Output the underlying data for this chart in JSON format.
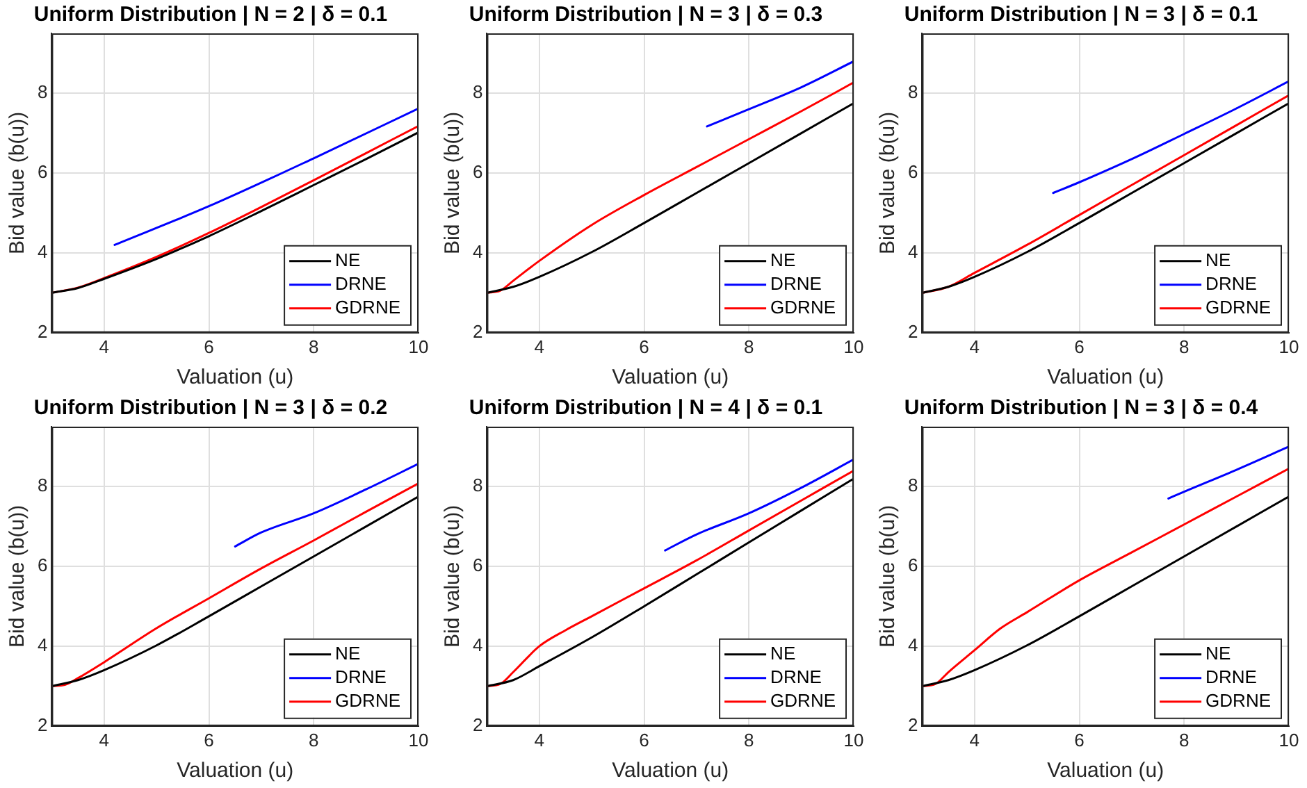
{
  "chart_data": [
    {
      "type": "line",
      "title": "Uniform Distribution | N = 2 | δ = 0.1",
      "xlabel": "Valuation (u)",
      "ylabel": "Bid value (b(u))",
      "xlim": [
        3,
        10
      ],
      "ylim": [
        2,
        9.5
      ],
      "xticks": [
        4,
        6,
        8,
        10
      ],
      "yticks": [
        2,
        4,
        6,
        8
      ],
      "grid": true,
      "legend": "bottom right",
      "marker": "none",
      "line_style": "solid",
      "series": [
        {
          "name": "NE",
          "color": "#000000",
          "x": [
            3,
            3.5,
            4,
            5,
            6,
            7,
            8,
            9,
            10
          ],
          "values": [
            3,
            3.12,
            3.35,
            3.85,
            4.42,
            5.05,
            5.7,
            6.35,
            7.02
          ]
        },
        {
          "name": "DRNE",
          "color": "#0000ff",
          "x": [
            4.2,
            6,
            8,
            10
          ],
          "values": [
            4.2,
            5.17,
            6.37,
            7.62
          ]
        },
        {
          "name": "GDRNE",
          "color": "#ff0000",
          "x": [
            3,
            3.5,
            4,
            5,
            6,
            7,
            8,
            9,
            10
          ],
          "values": [
            3,
            3.13,
            3.37,
            3.9,
            4.5,
            5.15,
            5.82,
            6.5,
            7.18
          ]
        }
      ]
    },
    {
      "type": "line",
      "title": "Uniform Distribution | N = 3 | δ = 0.3",
      "xlabel": "Valuation (u)",
      "ylabel": "Bid value (b(u))",
      "xlim": [
        3,
        10
      ],
      "ylim": [
        2,
        9.5
      ],
      "xticks": [
        4,
        6,
        8,
        10
      ],
      "yticks": [
        2,
        4,
        6,
        8
      ],
      "grid": true,
      "legend": "bottom right",
      "marker": "none",
      "line_style": "solid",
      "series": [
        {
          "name": "NE",
          "color": "#000000",
          "x": [
            3,
            3.5,
            4,
            5,
            6,
            7,
            8,
            9,
            10
          ],
          "values": [
            3,
            3.15,
            3.4,
            4.02,
            4.75,
            5.5,
            6.25,
            7.0,
            7.75
          ]
        },
        {
          "name": "DRNE",
          "color": "#0000ff",
          "x": [
            7.2,
            8,
            9,
            10
          ],
          "values": [
            7.17,
            7.6,
            8.15,
            8.8
          ]
        },
        {
          "name": "GDRNE",
          "color": "#ff0000",
          "x": [
            3,
            3.25,
            3.5,
            4,
            5,
            6,
            7,
            8,
            9,
            10
          ],
          "values": [
            3,
            3.05,
            3.3,
            3.8,
            4.7,
            5.45,
            6.15,
            6.85,
            7.55,
            8.27
          ]
        }
      ]
    },
    {
      "type": "line",
      "title": "Uniform Distribution | N = 3 | δ = 0.1",
      "xlabel": "Valuation (u)",
      "ylabel": "Bid value (b(u))",
      "xlim": [
        3,
        10
      ],
      "ylim": [
        2,
        9.5
      ],
      "xticks": [
        4,
        6,
        8,
        10
      ],
      "yticks": [
        2,
        4,
        6,
        8
      ],
      "grid": true,
      "legend": "bottom right",
      "marker": "none",
      "line_style": "solid",
      "series": [
        {
          "name": "NE",
          "color": "#000000",
          "x": [
            3,
            3.5,
            4,
            5,
            6,
            7,
            8,
            9,
            10
          ],
          "values": [
            3,
            3.15,
            3.4,
            4.02,
            4.75,
            5.5,
            6.25,
            7.0,
            7.75
          ]
        },
        {
          "name": "DRNE",
          "color": "#0000ff",
          "x": [
            5.5,
            6,
            7,
            8,
            9,
            10
          ],
          "values": [
            5.5,
            5.77,
            6.35,
            6.98,
            7.62,
            8.3
          ]
        },
        {
          "name": "GDRNE",
          "color": "#ff0000",
          "x": [
            3,
            3.5,
            4,
            5,
            6,
            7,
            8,
            9,
            10
          ],
          "values": [
            3,
            3.15,
            3.5,
            4.2,
            4.95,
            5.7,
            6.45,
            7.2,
            7.95
          ]
        }
      ]
    },
    {
      "type": "line",
      "title": "Uniform Distribution | N = 3 | δ = 0.2",
      "xlabel": "Valuation (u)",
      "ylabel": "Bid value (b(u))",
      "xlim": [
        3,
        10
      ],
      "ylim": [
        2,
        9.5
      ],
      "xticks": [
        4,
        6,
        8,
        10
      ],
      "yticks": [
        2,
        4,
        6,
        8
      ],
      "grid": true,
      "legend": "bottom right",
      "marker": "none",
      "line_style": "solid",
      "series": [
        {
          "name": "NE",
          "color": "#000000",
          "x": [
            3,
            3.5,
            4,
            5,
            6,
            7,
            8,
            9,
            10
          ],
          "values": [
            3,
            3.15,
            3.4,
            4.02,
            4.75,
            5.5,
            6.25,
            7.0,
            7.75
          ]
        },
        {
          "name": "DRNE",
          "color": "#0000ff",
          "x": [
            6.5,
            7,
            8,
            9,
            10
          ],
          "values": [
            6.5,
            6.85,
            7.33,
            7.93,
            8.57
          ]
        },
        {
          "name": "GDRNE",
          "color": "#ff0000",
          "x": [
            3,
            3.25,
            3.5,
            4,
            5,
            6,
            7,
            8,
            9,
            10
          ],
          "values": [
            3,
            3.03,
            3.2,
            3.6,
            4.45,
            5.2,
            5.95,
            6.65,
            7.37,
            8.08
          ]
        }
      ]
    },
    {
      "type": "line",
      "title": "Uniform Distribution | N = 4 | δ = 0.1",
      "xlabel": "Valuation (u)",
      "ylabel": "Bid value (b(u))",
      "xlim": [
        3,
        10
      ],
      "ylim": [
        2,
        9.5
      ],
      "xticks": [
        4,
        6,
        8,
        10
      ],
      "yticks": [
        2,
        4,
        6,
        8
      ],
      "grid": true,
      "legend": "bottom right",
      "marker": "none",
      "line_style": "solid",
      "series": [
        {
          "name": "NE",
          "color": "#000000",
          "x": [
            3,
            3.5,
            4,
            5,
            6,
            7,
            8,
            9,
            10
          ],
          "values": [
            3,
            3.15,
            3.5,
            4.22,
            5.0,
            5.8,
            6.6,
            7.4,
            8.2
          ]
        },
        {
          "name": "DRNE",
          "color": "#0000ff",
          "x": [
            6.4,
            7,
            8,
            9,
            10
          ],
          "values": [
            6.4,
            6.8,
            7.33,
            7.97,
            8.68
          ]
        },
        {
          "name": "GDRNE",
          "color": "#ff0000",
          "x": [
            3,
            3.25,
            3.5,
            4,
            4.5,
            5,
            6,
            7,
            8,
            9,
            10
          ],
          "values": [
            3,
            3.05,
            3.35,
            4.0,
            4.4,
            4.75,
            5.45,
            6.15,
            6.9,
            7.65,
            8.4
          ]
        }
      ]
    },
    {
      "type": "line",
      "title": "Uniform Distribution | N = 3 | δ = 0.4",
      "xlabel": "Valuation (u)",
      "ylabel": "Bid value (b(u))",
      "xlim": [
        3,
        10
      ],
      "ylim": [
        2,
        9.5
      ],
      "xticks": [
        4,
        6,
        8,
        10
      ],
      "yticks": [
        2,
        4,
        6,
        8
      ],
      "grid": true,
      "legend": "bottom right",
      "marker": "none",
      "line_style": "solid",
      "series": [
        {
          "name": "NE",
          "color": "#000000",
          "x": [
            3,
            3.5,
            4,
            5,
            6,
            7,
            8,
            9,
            10
          ],
          "values": [
            3,
            3.15,
            3.4,
            4.02,
            4.75,
            5.5,
            6.25,
            7.0,
            7.75
          ]
        },
        {
          "name": "DRNE",
          "color": "#0000ff",
          "x": [
            7.7,
            8,
            9,
            10
          ],
          "values": [
            7.7,
            7.87,
            8.42,
            9.0
          ]
        },
        {
          "name": "GDRNE",
          "color": "#ff0000",
          "x": [
            3,
            3.25,
            3.5,
            4,
            4.5,
            5,
            6,
            7,
            8,
            9,
            10
          ],
          "values": [
            3,
            3.05,
            3.35,
            3.9,
            4.45,
            4.85,
            5.65,
            6.35,
            7.05,
            7.75,
            8.45
          ]
        }
      ]
    }
  ]
}
